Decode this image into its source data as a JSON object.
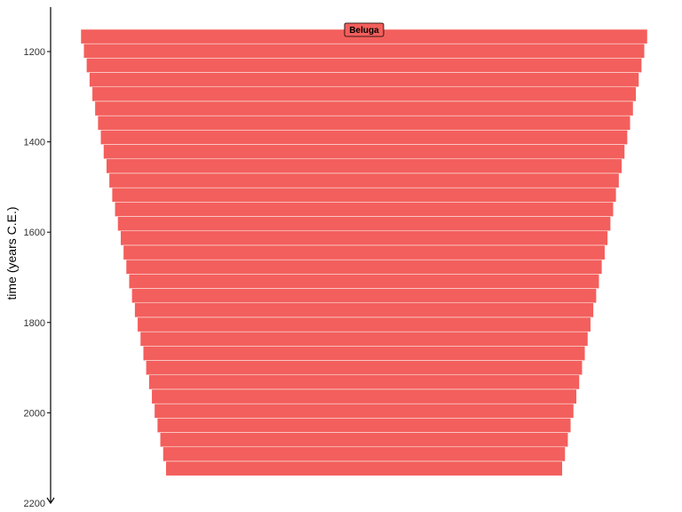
{
  "chart_data": {
    "type": "bar",
    "ylabel": "time (years C.E.)",
    "ylim": [
      1100,
      2200
    ],
    "y_ticks": [
      1200,
      1400,
      1600,
      1800,
      2000,
      2200
    ],
    "y_reversed": true,
    "grid": false,
    "legend": "none",
    "colors": {
      "bar": "#f35f5c",
      "separator": "#ffffff",
      "axis": "#000000"
    },
    "series": [
      {
        "name": "Beluga",
        "years": [
          1150,
          1182,
          1214,
          1246,
          1278,
          1310,
          1342,
          1374,
          1406,
          1438,
          1470,
          1502,
          1534,
          1566,
          1598,
          1630,
          1662,
          1694,
          1726,
          1758,
          1790,
          1822,
          1854,
          1886,
          1918,
          1950,
          1982,
          2014,
          2046,
          2078,
          2110
        ],
        "values": [
          1.0,
          0.99,
          0.98,
          0.97,
          0.96,
          0.95,
          0.94,
          0.93,
          0.92,
          0.91,
          0.9,
          0.89,
          0.88,
          0.87,
          0.86,
          0.85,
          0.84,
          0.83,
          0.82,
          0.81,
          0.8,
          0.79,
          0.78,
          0.77,
          0.76,
          0.75,
          0.74,
          0.73,
          0.72,
          0.71,
          0.7
        ]
      }
    ]
  }
}
